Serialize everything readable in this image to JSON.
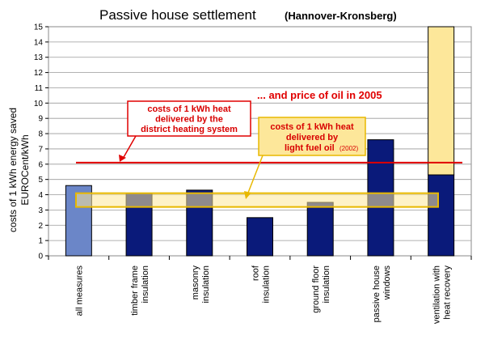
{
  "chart_data": {
    "type": "bar",
    "title": "Passive house settlement",
    "subtitle": "(Hannover-Kronsberg)",
    "ylabel_line1": "costs of 1 kWh energy saved",
    "ylabel_line2": "EUROCent/kWh",
    "ylim": [
      0,
      15
    ],
    "yticks": [
      "0",
      "1",
      "2",
      "3",
      "4",
      "5",
      "6",
      "7",
      "8",
      "9",
      "10",
      "11",
      "12",
      "13",
      "14",
      "15"
    ],
    "categories": [
      [
        "all measures"
      ],
      [
        "timber frame",
        "insulation"
      ],
      [
        "masonry",
        "insulation"
      ],
      [
        "roof",
        "insulation"
      ],
      [
        "ground floor",
        "insulation"
      ],
      [
        "passive house",
        "windows"
      ],
      [
        "ventilation with",
        "heat recovery"
      ]
    ],
    "values": [
      4.6,
      4.1,
      4.3,
      2.5,
      3.5,
      7.6,
      5.3
    ],
    "stacked_upper": [
      0,
      0,
      0,
      0,
      0,
      0,
      9.7
    ],
    "bar_colors": [
      "#6b86c8",
      "#0a1a7a",
      "#0a1a7a",
      "#0a1a7a",
      "#0a1a7a",
      "#0a1a7a",
      "#0a1a7a"
    ],
    "upper_color": "#fde79a",
    "oil_price_level": 6.1,
    "light_fuel_oil_band": [
      3.2,
      4.1
    ],
    "grid": true,
    "annotations": {
      "oil_price_2005": "... and price of oil in 2005",
      "district_heating": [
        "costs of 1 kWh heat",
        "delivered by the",
        "district heating system"
      ],
      "light_fuel_oil": [
        "costs of 1 kWh heat",
        "delivered by",
        "light fuel oil"
      ],
      "light_fuel_oil_year": "(2002)"
    },
    "colors": {
      "red": "#e00000",
      "band_fill": "#fde79a",
      "band_stroke": "#e8b800"
    }
  }
}
